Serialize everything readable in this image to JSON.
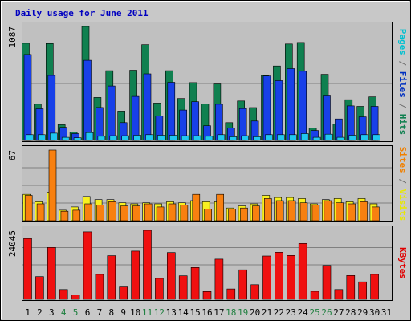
{
  "chart_data": {
    "type": "bar",
    "title": "Daily usage for June 2011",
    "categories": [
      "1",
      "2",
      "3",
      "4",
      "5",
      "6",
      "7",
      "8",
      "9",
      "10",
      "11",
      "12",
      "13",
      "14",
      "15",
      "16",
      "17",
      "18",
      "19",
      "20",
      "21",
      "22",
      "23",
      "24",
      "25",
      "26",
      "27",
      "28",
      "29",
      "30",
      "31"
    ],
    "weekend_days": [
      "4",
      "5",
      "11",
      "12",
      "18",
      "19",
      "25",
      "26"
    ],
    "panels": [
      {
        "id": "top",
        "max_label": "1087",
        "ylim": [
          0,
          1087
        ],
        "side_label": [
          {
            "text": "Pages",
            "color": "#00c0d0"
          },
          {
            "text": " / ",
            "color": "#707070"
          },
          {
            "text": "Files",
            "color": "#0030c0"
          },
          {
            "text": " / ",
            "color": "#707070"
          },
          {
            "text": "Hits",
            "color": "#108050"
          }
        ],
        "series": [
          {
            "name": "Hits",
            "color": "#108050",
            "values": [
              927,
              346,
              924,
              150,
              82,
              1087,
              410,
              665,
              280,
              670,
              913,
              357,
              665,
              400,
              552,
              349,
              539,
              170,
              377,
              314,
              620,
              710,
              920,
              935,
              120,
              631,
              155,
              389,
              325,
              416,
              null
            ]
          },
          {
            "name": "Files",
            "color": "#1840e8",
            "values": [
              820,
              302,
              620,
              125,
              65,
              765,
              315,
              520,
              170,
              420,
              635,
              235,
              555,
              290,
              370,
              140,
              345,
              120,
              305,
              185,
              615,
              570,
              685,
              660,
              95,
              425,
              205,
              330,
              225,
              325,
              null
            ]
          },
          {
            "name": "Pages",
            "color": "#20c8f0",
            "values": [
              55,
              55,
              70,
              30,
              25,
              75,
              40,
              45,
              45,
              50,
              55,
              50,
              50,
              45,
              45,
              40,
              55,
              35,
              45,
              35,
              55,
              55,
              55,
              65,
              30,
              60,
              30,
              50,
              55,
              55,
              null
            ]
          }
        ]
      },
      {
        "id": "mid",
        "max_label": "67",
        "ylim": [
          0,
          67
        ],
        "side_label": [
          {
            "text": "Sites",
            "color": "#f08000"
          },
          {
            "text": " / ",
            "color": "#707070"
          },
          {
            "text": "Visits",
            "color": "#e8e800"
          }
        ],
        "series": [
          {
            "name": "Visits",
            "color": "#f8f020",
            "values": [
              25,
              18,
              27,
              10,
              13,
              23,
              20,
              20,
              17,
              16,
              17,
              16,
              18,
              17,
              19,
              18,
              18,
              12,
              14,
              16,
              24,
              22,
              22,
              21,
              16,
              20,
              21,
              18,
              21,
              16,
              null
            ]
          },
          {
            "name": "Sites",
            "color": "#f88010",
            "values": [
              24,
              16,
              67,
              9,
              10,
              16,
              15,
              18,
              14,
              14,
              16,
              13,
              16,
              15,
              25,
              11,
              25,
              11,
              12,
              14,
              21,
              19,
              19,
              17,
              15,
              19,
              17,
              16,
              18,
              13,
              null
            ]
          }
        ]
      },
      {
        "id": "bot",
        "max_label": "24045",
        "ylim": [
          0,
          24045
        ],
        "side_label": [
          {
            "text": "KBytes",
            "color": "#e00000"
          }
        ],
        "series": [
          {
            "name": "KBytes",
            "color": "#f01010",
            "values": [
              21200,
              7900,
              18100,
              3400,
              1500,
              23500,
              8700,
              15200,
              4300,
              16800,
              24045,
              7300,
              16300,
              8200,
              11100,
              2700,
              14000,
              3600,
              10300,
              5100,
              15100,
              16400,
              15300,
              19500,
              2800,
              11800,
              3400,
              8300,
              6100,
              8700,
              null
            ]
          }
        ]
      }
    ]
  }
}
